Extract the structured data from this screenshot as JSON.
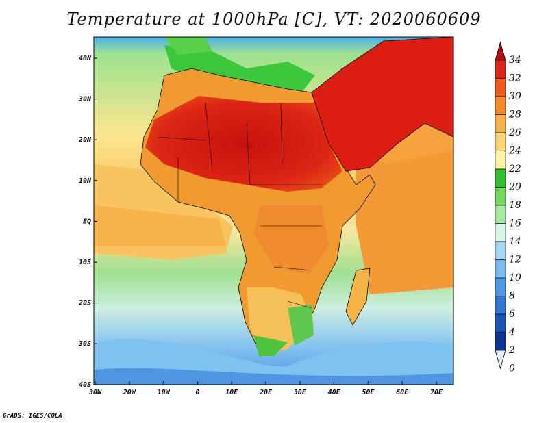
{
  "title": "Temperature at 1000hPa [C], VT: 2020060609",
  "footer": "GrADS: IGES/COLA",
  "colors": {
    "ocean_warm": "#f3a03c",
    "ocean_mid": "#fbe08a",
    "ocean_cool": "#92dc86",
    "ocean_cold": "#7cc0ee",
    "land_hot": "#dc1e12",
    "land_warm": "#ef7a1e",
    "boundary": "#000000"
  },
  "map": {
    "lon_labels": [
      "30W",
      "20W",
      "10W",
      "0",
      "10E",
      "20E",
      "30E",
      "40E",
      "50E",
      "60E",
      "70E"
    ],
    "lat_labels": [
      "40N",
      "30N",
      "20N",
      "10N",
      "EQ",
      "10S",
      "20S",
      "30S",
      "40S"
    ]
  },
  "colorbar": {
    "levels": [
      "34",
      "32",
      "30",
      "28",
      "26",
      "24",
      "22",
      "20",
      "18",
      "16",
      "14",
      "12",
      "10",
      "8",
      "6",
      "4",
      "2",
      "0"
    ],
    "colors": [
      "#b20e0e",
      "#e0241a",
      "#f05a1c",
      "#f58a26",
      "#f9b24a",
      "#fbd774",
      "#fdf3a8",
      "#2fbf2f",
      "#74d85e",
      "#a8eba0",
      "#d8f5e8",
      "#a6d8f6",
      "#7cbcf0",
      "#4f98e4",
      "#2f78d4",
      "#1a56b8",
      "#0c3494",
      "#06186a"
    ]
  }
}
